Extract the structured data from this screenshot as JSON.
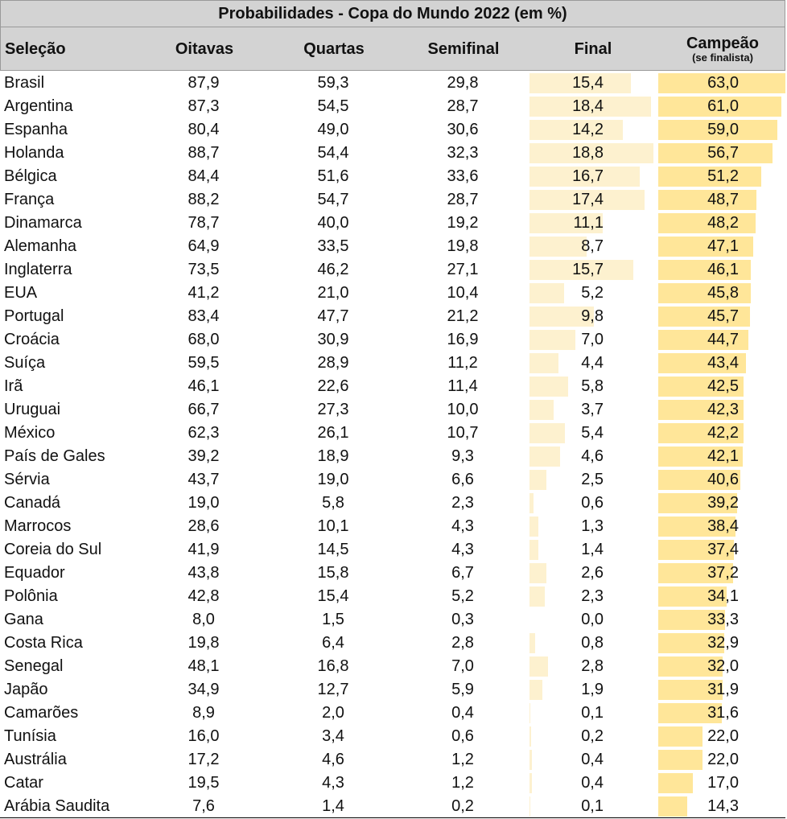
{
  "title": "Probabilidades - Copa do Mundo 2022 (em %)",
  "headers": {
    "team": "Seleção",
    "r16": "Oitavas",
    "qf": "Quartas",
    "sf": "Semifinal",
    "final": "Final",
    "champion": "Campeão",
    "champion_note": "(se finalista)"
  },
  "colors": {
    "header_bg": "#d3d3d3",
    "final_bar": "#fdf1cf",
    "champion_bar": "#ffe699"
  },
  "teams": [
    {
      "name": "Brasil",
      "r16": "87,9",
      "qf": "59,3",
      "sf": "29,8",
      "final": "15,4",
      "champion": "63,0"
    },
    {
      "name": "Argentina",
      "r16": "87,3",
      "qf": "54,5",
      "sf": "28,7",
      "final": "18,4",
      "champion": "61,0"
    },
    {
      "name": "Espanha",
      "r16": "80,4",
      "qf": "49,0",
      "sf": "30,6",
      "final": "14,2",
      "champion": "59,0"
    },
    {
      "name": "Holanda",
      "r16": "88,7",
      "qf": "54,4",
      "sf": "32,3",
      "final": "18,8",
      "champion": "56,7"
    },
    {
      "name": "Bélgica",
      "r16": "84,4",
      "qf": "51,6",
      "sf": "33,6",
      "final": "16,7",
      "champion": "51,2"
    },
    {
      "name": "França",
      "r16": "88,2",
      "qf": "54,7",
      "sf": "28,7",
      "final": "17,4",
      "champion": "48,7"
    },
    {
      "name": "Dinamarca",
      "r16": "78,7",
      "qf": "40,0",
      "sf": "19,2",
      "final": "11,1",
      "champion": "48,2"
    },
    {
      "name": "Alemanha",
      "r16": "64,9",
      "qf": "33,5",
      "sf": "19,8",
      "final": "8,7",
      "champion": "47,1"
    },
    {
      "name": "Inglaterra",
      "r16": "73,5",
      "qf": "46,2",
      "sf": "27,1",
      "final": "15,7",
      "champion": "46,1"
    },
    {
      "name": "EUA",
      "r16": "41,2",
      "qf": "21,0",
      "sf": "10,4",
      "final": "5,2",
      "champion": "45,8"
    },
    {
      "name": "Portugal",
      "r16": "83,4",
      "qf": "47,7",
      "sf": "21,2",
      "final": "9,8",
      "champion": "45,7"
    },
    {
      "name": "Croácia",
      "r16": "68,0",
      "qf": "30,9",
      "sf": "16,9",
      "final": "7,0",
      "champion": "44,7"
    },
    {
      "name": "Suíça",
      "r16": "59,5",
      "qf": "28,9",
      "sf": "11,2",
      "final": "4,4",
      "champion": "43,4"
    },
    {
      "name": "Irã",
      "r16": "46,1",
      "qf": "22,6",
      "sf": "11,4",
      "final": "5,8",
      "champion": "42,5"
    },
    {
      "name": "Uruguai",
      "r16": "66,7",
      "qf": "27,3",
      "sf": "10,0",
      "final": "3,7",
      "champion": "42,3"
    },
    {
      "name": "México",
      "r16": "62,3",
      "qf": "26,1",
      "sf": "10,7",
      "final": "5,4",
      "champion": "42,2"
    },
    {
      "name": "País de Gales",
      "r16": "39,2",
      "qf": "18,9",
      "sf": "9,3",
      "final": "4,6",
      "champion": "42,1"
    },
    {
      "name": "Sérvia",
      "r16": "43,7",
      "qf": "19,0",
      "sf": "6,6",
      "final": "2,5",
      "champion": "40,6"
    },
    {
      "name": "Canadá",
      "r16": "19,0",
      "qf": "5,8",
      "sf": "2,3",
      "final": "0,6",
      "champion": "39,2"
    },
    {
      "name": "Marrocos",
      "r16": "28,6",
      "qf": "10,1",
      "sf": "4,3",
      "final": "1,3",
      "champion": "38,4"
    },
    {
      "name": "Coreia do Sul",
      "r16": "41,9",
      "qf": "14,5",
      "sf": "4,3",
      "final": "1,4",
      "champion": "37,4"
    },
    {
      "name": "Equador",
      "r16": "43,8",
      "qf": "15,8",
      "sf": "6,7",
      "final": "2,6",
      "champion": "37,2"
    },
    {
      "name": "Polônia",
      "r16": "42,8",
      "qf": "15,4",
      "sf": "5,2",
      "final": "2,3",
      "champion": "34,1"
    },
    {
      "name": "Gana",
      "r16": "8,0",
      "qf": "1,5",
      "sf": "0,3",
      "final": "0,0",
      "champion": "33,3"
    },
    {
      "name": "Costa Rica",
      "r16": "19,8",
      "qf": "6,4",
      "sf": "2,8",
      "final": "0,8",
      "champion": "32,9"
    },
    {
      "name": "Senegal",
      "r16": "48,1",
      "qf": "16,8",
      "sf": "7,0",
      "final": "2,8",
      "champion": "32,0"
    },
    {
      "name": "Japão",
      "r16": "34,9",
      "qf": "12,7",
      "sf": "5,9",
      "final": "1,9",
      "champion": "31,9"
    },
    {
      "name": "Camarões",
      "r16": "8,9",
      "qf": "2,0",
      "sf": "0,4",
      "final": "0,1",
      "champion": "31,6"
    },
    {
      "name": "Tunísia",
      "r16": "16,0",
      "qf": "3,4",
      "sf": "0,6",
      "final": "0,2",
      "champion": "22,0"
    },
    {
      "name": "Austrália",
      "r16": "17,2",
      "qf": "4,6",
      "sf": "1,2",
      "final": "0,4",
      "champion": "22,0"
    },
    {
      "name": "Catar",
      "r16": "19,5",
      "qf": "4,3",
      "sf": "1,2",
      "final": "0,4",
      "champion": "17,0"
    },
    {
      "name": "Arábia Saudita",
      "r16": "7,6",
      "qf": "1,4",
      "sf": "0,2",
      "final": "0,1",
      "champion": "14,3"
    }
  ]
}
